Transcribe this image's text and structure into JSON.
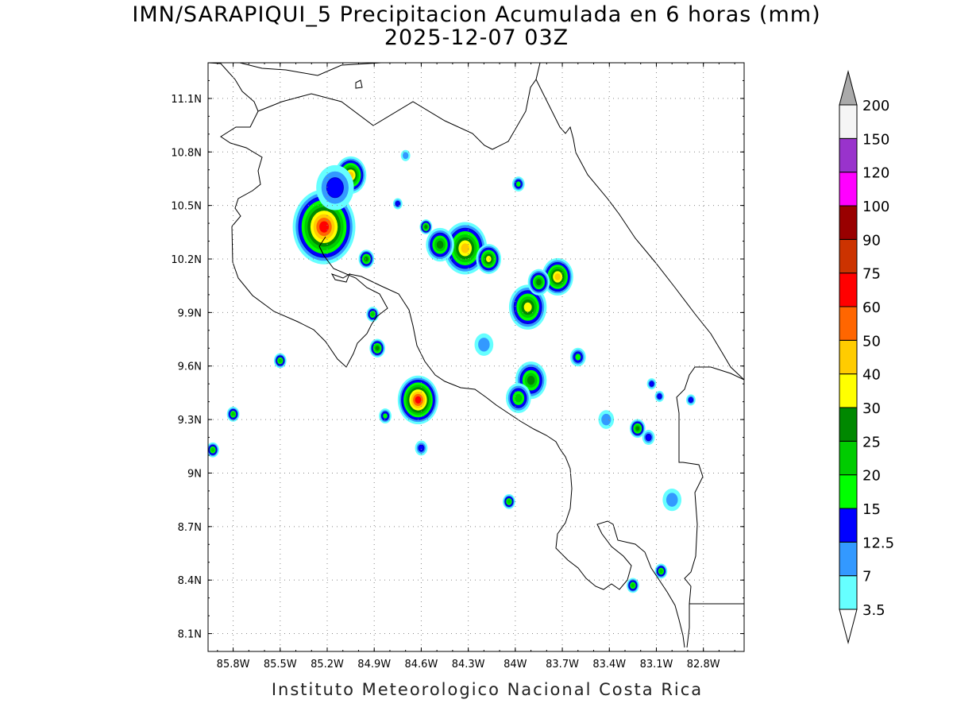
{
  "title": {
    "line1": "IMN/SARAPIQUI_5 Precipitacion Acumulada en 6 horas (mm)",
    "line2": "2025-12-07 03Z"
  },
  "footer": "Instituto Meteorologico Nacional Costa Rica",
  "axes": {
    "lon_labels": [
      "85.8W",
      "85.5W",
      "85.2W",
      "84.9W",
      "84.6W",
      "84.3W",
      "84W",
      "83.7W",
      "83.4W",
      "83.1W",
      "82.8W"
    ],
    "lon_values": [
      -85.8,
      -85.5,
      -85.2,
      -84.9,
      -84.6,
      -84.3,
      -84.0,
      -83.7,
      -83.4,
      -83.1,
      -82.8
    ],
    "lat_labels": [
      "11.1N",
      "10.8N",
      "10.5N",
      "10.2N",
      "9.9N",
      "9.6N",
      "9.3N",
      "9N",
      "8.7N",
      "8.4N",
      "8.1N"
    ],
    "lat_values": [
      11.1,
      10.8,
      10.5,
      10.2,
      9.9,
      9.6,
      9.3,
      9.0,
      8.7,
      8.4,
      8.1
    ],
    "lon_range": [
      -85.96,
      -82.54
    ],
    "lat_range": [
      8.0,
      11.3
    ],
    "grid": true
  },
  "colorbar": {
    "thresholds": [
      "3.5",
      "7",
      "12.5",
      "15",
      "20",
      "25",
      "30",
      "40",
      "50",
      "60",
      "75",
      "90",
      "100",
      "120",
      "150",
      "200"
    ],
    "colors": [
      "#ffffff",
      "#66ffff",
      "#3399ff",
      "#0000ff",
      "#00ff00",
      "#00cc00",
      "#008800",
      "#ffff00",
      "#ffcc00",
      "#ff6600",
      "#ff0000",
      "#cc3300",
      "#990000",
      "#ff00ff",
      "#9933cc",
      "#f5f5f5",
      "#aaaaaa"
    ]
  },
  "precip_cells": [
    {
      "lon": -85.22,
      "lat": 10.38,
      "peak": 60,
      "r": 0.2
    },
    {
      "lon": -85.05,
      "lat": 10.67,
      "peak": 40,
      "r": 0.1
    },
    {
      "lon": -85.15,
      "lat": 10.6,
      "peak": 12.5,
      "r": 0.12
    },
    {
      "lon": -84.32,
      "lat": 10.26,
      "peak": 40,
      "r": 0.14
    },
    {
      "lon": -84.48,
      "lat": 10.28,
      "peak": 25,
      "r": 0.09
    },
    {
      "lon": -84.17,
      "lat": 10.2,
      "peak": 30,
      "r": 0.08
    },
    {
      "lon": -83.73,
      "lat": 10.1,
      "peak": 40,
      "r": 0.1
    },
    {
      "lon": -83.92,
      "lat": 9.93,
      "peak": 30,
      "r": 0.12
    },
    {
      "lon": -83.85,
      "lat": 10.07,
      "peak": 25,
      "r": 0.07
    },
    {
      "lon": -84.62,
      "lat": 9.41,
      "peak": 60,
      "r": 0.13
    },
    {
      "lon": -83.9,
      "lat": 9.52,
      "peak": 25,
      "r": 0.1
    },
    {
      "lon": -83.98,
      "lat": 9.42,
      "peak": 20,
      "r": 0.08
    },
    {
      "lon": -84.88,
      "lat": 9.7,
      "peak": 25,
      "r": 0.05
    },
    {
      "lon": -84.91,
      "lat": 9.89,
      "peak": 20,
      "r": 0.04
    },
    {
      "lon": -84.95,
      "lat": 10.2,
      "peak": 25,
      "r": 0.05
    },
    {
      "lon": -84.57,
      "lat": 10.38,
      "peak": 25,
      "r": 0.04
    },
    {
      "lon": -83.98,
      "lat": 10.62,
      "peak": 15,
      "r": 0.04
    },
    {
      "lon": -85.5,
      "lat": 9.63,
      "peak": 20,
      "r": 0.04
    },
    {
      "lon": -85.8,
      "lat": 9.33,
      "peak": 20,
      "r": 0.04
    },
    {
      "lon": -85.93,
      "lat": 9.13,
      "peak": 20,
      "r": 0.04
    },
    {
      "lon": -84.83,
      "lat": 9.32,
      "peak": 15,
      "r": 0.04
    },
    {
      "lon": -84.6,
      "lat": 9.14,
      "peak": 12.5,
      "r": 0.04
    },
    {
      "lon": -83.6,
      "lat": 9.65,
      "peak": 15,
      "r": 0.05
    },
    {
      "lon": -83.22,
      "lat": 9.25,
      "peak": 25,
      "r": 0.05
    },
    {
      "lon": -83.15,
      "lat": 9.2,
      "peak": 12.5,
      "r": 0.04
    },
    {
      "lon": -83.08,
      "lat": 9.43,
      "peak": 12.5,
      "r": 0.03
    },
    {
      "lon": -83.13,
      "lat": 9.5,
      "peak": 12.5,
      "r": 0.03
    },
    {
      "lon": -83.0,
      "lat": 8.85,
      "peak": 7,
      "r": 0.06
    },
    {
      "lon": -83.07,
      "lat": 8.45,
      "peak": 20,
      "r": 0.04
    },
    {
      "lon": -83.25,
      "lat": 8.37,
      "peak": 20,
      "r": 0.04
    },
    {
      "lon": -84.04,
      "lat": 8.84,
      "peak": 20,
      "r": 0.04
    },
    {
      "lon": -82.88,
      "lat": 9.41,
      "peak": 12.5,
      "r": 0.03
    },
    {
      "lon": -84.75,
      "lat": 10.51,
      "peak": 12.5,
      "r": 0.03
    },
    {
      "lon": -84.7,
      "lat": 10.78,
      "peak": 7,
      "r": 0.03
    },
    {
      "lon": -84.2,
      "lat": 9.72,
      "peak": 7,
      "r": 0.06
    },
    {
      "lon": -83.42,
      "lat": 9.3,
      "peak": 7,
      "r": 0.05
    }
  ]
}
